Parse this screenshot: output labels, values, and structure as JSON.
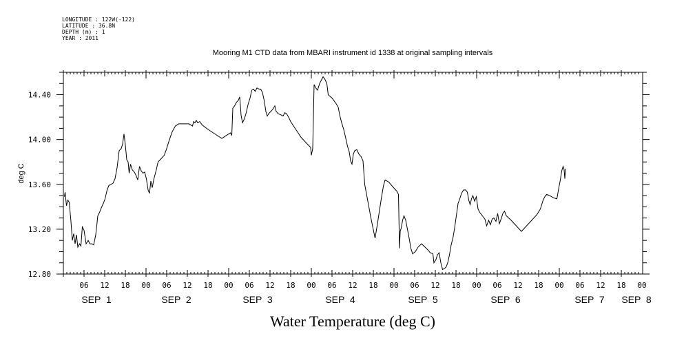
{
  "header": {
    "longitude": "LONGITUDE : 122W(-122)",
    "latitude": "LATITUDE : 36.8N",
    "depth": "DEPTH (m) : 1",
    "year": "YEAR : 2011"
  },
  "chart_data": {
    "type": "line",
    "title": "Mooring M1 CTD data from MBARI instrument id 1338 at original sampling intervals",
    "xlabel": "Water Temperature (deg C)",
    "ylabel": "deg C",
    "ylim": [
      12.8,
      14.6
    ],
    "yticks": [
      "12.80",
      "13.20",
      "13.60",
      "14.00",
      "14.40"
    ],
    "x_range_hours": [
      0,
      167
    ],
    "hour_tick_labels": [
      "06",
      "12",
      "18",
      "00",
      "06",
      "12",
      "18",
      "00",
      "06",
      "12",
      "18",
      "00",
      "06",
      "12",
      "18",
      "00",
      "06",
      "12",
      "18",
      "00",
      "06",
      "12",
      "18",
      "00",
      "06",
      "12",
      "18",
      "00"
    ],
    "day_labels": [
      "SEP  1",
      "SEP  2",
      "SEP  3",
      "SEP  4",
      "SEP  5",
      "SEP  6",
      "SEP  7",
      "SEP  8"
    ],
    "grid": false,
    "series": [
      {
        "name": "",
        "color": "#000000",
        "points": [
          [
            0.3,
            13.49
          ],
          [
            0.5,
            13.53
          ],
          [
            0.9,
            13.41
          ],
          [
            1.3,
            13.46
          ],
          [
            1.7,
            13.44
          ],
          [
            2.2,
            13.27
          ],
          [
            2.6,
            13.1
          ],
          [
            3.0,
            13.16
          ],
          [
            3.4,
            13.07
          ],
          [
            3.8,
            13.15
          ],
          [
            4.2,
            13.04
          ],
          [
            4.7,
            13.07
          ],
          [
            5.1,
            13.05
          ],
          [
            5.5,
            13.22
          ],
          [
            6.0,
            13.19
          ],
          [
            6.6,
            13.07
          ],
          [
            7.2,
            13.1
          ],
          [
            7.7,
            13.07
          ],
          [
            8.3,
            13.07
          ],
          [
            8.8,
            13.06
          ],
          [
            9.4,
            13.15
          ],
          [
            10.0,
            13.32
          ],
          [
            10.5,
            13.35
          ],
          [
            11.0,
            13.39
          ],
          [
            11.6,
            13.43
          ],
          [
            12.1,
            13.47
          ],
          [
            12.7,
            13.55
          ],
          [
            13.2,
            13.59
          ],
          [
            13.8,
            13.6
          ],
          [
            14.4,
            13.61
          ],
          [
            15.0,
            13.65
          ],
          [
            15.6,
            13.75
          ],
          [
            16.2,
            13.9
          ],
          [
            16.8,
            13.92
          ],
          [
            17.2,
            13.96
          ],
          [
            17.6,
            14.05
          ],
          [
            18.0,
            13.95
          ],
          [
            18.4,
            13.82
          ],
          [
            18.8,
            13.8
          ],
          [
            19.1,
            13.7
          ],
          [
            19.5,
            13.78
          ],
          [
            20.0,
            13.73
          ],
          [
            20.6,
            13.71
          ],
          [
            21.1,
            13.68
          ],
          [
            21.6,
            13.64
          ],
          [
            22.1,
            13.76
          ],
          [
            22.6,
            13.72
          ],
          [
            23.1,
            13.7
          ],
          [
            23.6,
            13.71
          ],
          [
            24.1,
            13.65
          ],
          [
            24.6,
            13.55
          ],
          [
            25.0,
            13.52
          ],
          [
            25.4,
            13.63
          ],
          [
            25.8,
            13.57
          ],
          [
            26.3,
            13.65
          ],
          [
            26.9,
            13.72
          ],
          [
            27.5,
            13.8
          ],
          [
            28.1,
            13.82
          ],
          [
            28.7,
            13.84
          ],
          [
            29.3,
            13.86
          ],
          [
            30.0,
            13.92
          ],
          [
            30.8,
            14.0
          ],
          [
            31.6,
            14.07
          ],
          [
            32.5,
            14.12
          ],
          [
            33.5,
            14.14
          ],
          [
            35.0,
            14.14
          ],
          [
            36.5,
            14.14
          ],
          [
            37.5,
            14.12
          ],
          [
            37.8,
            14.16
          ],
          [
            38.2,
            14.15
          ],
          [
            38.6,
            14.17
          ],
          [
            39.0,
            14.15
          ],
          [
            39.6,
            14.16
          ],
          [
            40.3,
            14.13
          ],
          [
            42.0,
            14.09
          ],
          [
            44.0,
            14.05
          ],
          [
            46.0,
            14.01
          ],
          [
            47.5,
            14.04
          ],
          [
            48.5,
            14.06
          ],
          [
            48.9,
            14.04
          ],
          [
            49.2,
            14.28
          ],
          [
            49.7,
            14.3
          ],
          [
            50.2,
            14.33
          ],
          [
            50.8,
            14.35
          ],
          [
            51.2,
            14.38
          ],
          [
            51.6,
            14.22
          ],
          [
            52.0,
            14.15
          ],
          [
            52.5,
            14.18
          ],
          [
            53.1,
            14.24
          ],
          [
            53.6,
            14.31
          ],
          [
            54.2,
            14.37
          ],
          [
            54.7,
            14.44
          ],
          [
            55.2,
            14.45
          ],
          [
            55.7,
            14.43
          ],
          [
            56.2,
            14.46
          ],
          [
            56.8,
            14.45
          ],
          [
            57.3,
            14.45
          ],
          [
            57.8,
            14.42
          ],
          [
            58.3,
            14.35
          ],
          [
            58.8,
            14.25
          ],
          [
            59.2,
            14.21
          ],
          [
            59.6,
            14.23
          ],
          [
            60.2,
            14.25
          ],
          [
            60.8,
            14.27
          ],
          [
            61.4,
            14.3
          ],
          [
            61.8,
            14.25
          ],
          [
            62.4,
            14.23
          ],
          [
            63.2,
            14.22
          ],
          [
            63.8,
            14.21
          ],
          [
            64.3,
            14.24
          ],
          [
            64.8,
            14.23
          ],
          [
            65.4,
            14.2
          ],
          [
            66.0,
            14.16
          ],
          [
            67.5,
            14.09
          ],
          [
            69.0,
            14.02
          ],
          [
            70.5,
            13.97
          ],
          [
            71.8,
            13.93
          ],
          [
            72.0,
            13.86
          ],
          [
            72.4,
            13.92
          ],
          [
            72.8,
            14.49
          ],
          [
            73.3,
            14.46
          ],
          [
            73.8,
            14.44
          ],
          [
            74.4,
            14.5
          ],
          [
            74.9,
            14.53
          ],
          [
            75.4,
            14.56
          ],
          [
            75.9,
            14.54
          ],
          [
            76.5,
            14.5
          ],
          [
            76.9,
            14.4
          ],
          [
            78.0,
            14.37
          ],
          [
            79.2,
            14.32
          ],
          [
            79.8,
            14.29
          ],
          [
            80.3,
            14.21
          ],
          [
            80.8,
            14.15
          ],
          [
            81.4,
            14.09
          ],
          [
            82.0,
            14.01
          ],
          [
            82.5,
            13.94
          ],
          [
            83.0,
            13.89
          ],
          [
            83.4,
            13.81
          ],
          [
            83.8,
            13.78
          ],
          [
            84.2,
            13.87
          ],
          [
            84.6,
            13.9
          ],
          [
            85.2,
            13.91
          ],
          [
            85.8,
            13.87
          ],
          [
            86.4,
            13.85
          ],
          [
            87.0,
            13.81
          ],
          [
            87.5,
            13.6
          ],
          [
            88.1,
            13.5
          ],
          [
            88.7,
            13.4
          ],
          [
            89.3,
            13.3
          ],
          [
            89.9,
            13.21
          ],
          [
            90.5,
            13.12
          ],
          [
            91.1,
            13.23
          ],
          [
            91.7,
            13.35
          ],
          [
            92.3,
            13.47
          ],
          [
            92.9,
            13.58
          ],
          [
            93.4,
            13.64
          ],
          [
            94.5,
            13.62
          ],
          [
            95.6,
            13.58
          ],
          [
            96.8,
            13.54
          ],
          [
            97.3,
            13.51
          ],
          [
            97.6,
            13.03
          ],
          [
            97.8,
            13.18
          ],
          [
            98.1,
            13.21
          ],
          [
            98.5,
            13.28
          ],
          [
            98.9,
            13.32
          ],
          [
            99.4,
            13.28
          ],
          [
            99.9,
            13.2
          ],
          [
            100.4,
            13.12
          ],
          [
            100.9,
            13.03
          ],
          [
            101.4,
            12.98
          ],
          [
            102.2,
            13.0
          ],
          [
            103.0,
            13.04
          ],
          [
            104.0,
            13.07
          ],
          [
            105.0,
            13.04
          ],
          [
            106.0,
            13.01
          ],
          [
            106.5,
            12.99
          ],
          [
            107.3,
            12.98
          ],
          [
            107.6,
            12.9
          ],
          [
            108.2,
            12.93
          ],
          [
            108.6,
            12.97
          ],
          [
            109.1,
            12.99
          ],
          [
            109.6,
            12.9
          ],
          [
            110.1,
            12.84
          ],
          [
            110.6,
            12.85
          ],
          [
            111.1,
            12.86
          ],
          [
            111.6,
            12.9
          ],
          [
            112.1,
            12.97
          ],
          [
            112.6,
            13.06
          ],
          [
            113.1,
            13.12
          ],
          [
            113.6,
            13.21
          ],
          [
            114.1,
            13.32
          ],
          [
            114.6,
            13.43
          ],
          [
            115.1,
            13.47
          ],
          [
            115.6,
            13.52
          ],
          [
            116.2,
            13.55
          ],
          [
            116.8,
            13.55
          ],
          [
            117.3,
            13.53
          ],
          [
            117.7,
            13.46
          ],
          [
            118.1,
            13.42
          ],
          [
            118.5,
            13.47
          ],
          [
            118.9,
            13.5
          ],
          [
            119.4,
            13.45
          ],
          [
            119.9,
            13.49
          ],
          [
            120.4,
            13.38
          ],
          [
            120.9,
            13.35
          ],
          [
            121.4,
            13.33
          ],
          [
            121.9,
            13.31
          ],
          [
            122.4,
            13.29
          ],
          [
            122.9,
            13.23
          ],
          [
            123.5,
            13.28
          ],
          [
            124.0,
            13.24
          ],
          [
            124.5,
            13.29
          ],
          [
            125.0,
            13.3
          ],
          [
            125.6,
            13.27
          ],
          [
            126.1,
            13.34
          ],
          [
            126.6,
            13.25
          ],
          [
            127.1,
            13.29
          ],
          [
            127.6,
            13.34
          ],
          [
            128.1,
            13.36
          ],
          [
            128.6,
            13.32
          ],
          [
            130.0,
            13.28
          ],
          [
            131.5,
            13.23
          ],
          [
            133.0,
            13.18
          ],
          [
            134.5,
            13.23
          ],
          [
            136.0,
            13.28
          ],
          [
            137.5,
            13.33
          ],
          [
            138.5,
            13.38
          ],
          [
            139.3,
            13.46
          ],
          [
            139.8,
            13.49
          ],
          [
            140.3,
            13.51
          ],
          [
            141.2,
            13.5
          ],
          [
            142.3,
            13.48
          ],
          [
            143.3,
            13.47
          ],
          [
            143.8,
            13.56
          ],
          [
            144.3,
            13.64
          ],
          [
            144.7,
            13.72
          ],
          [
            145.1,
            13.76
          ],
          [
            145.4,
            13.73
          ],
          [
            145.6,
            13.65
          ],
          [
            145.8,
            13.74
          ]
        ]
      }
    ]
  }
}
